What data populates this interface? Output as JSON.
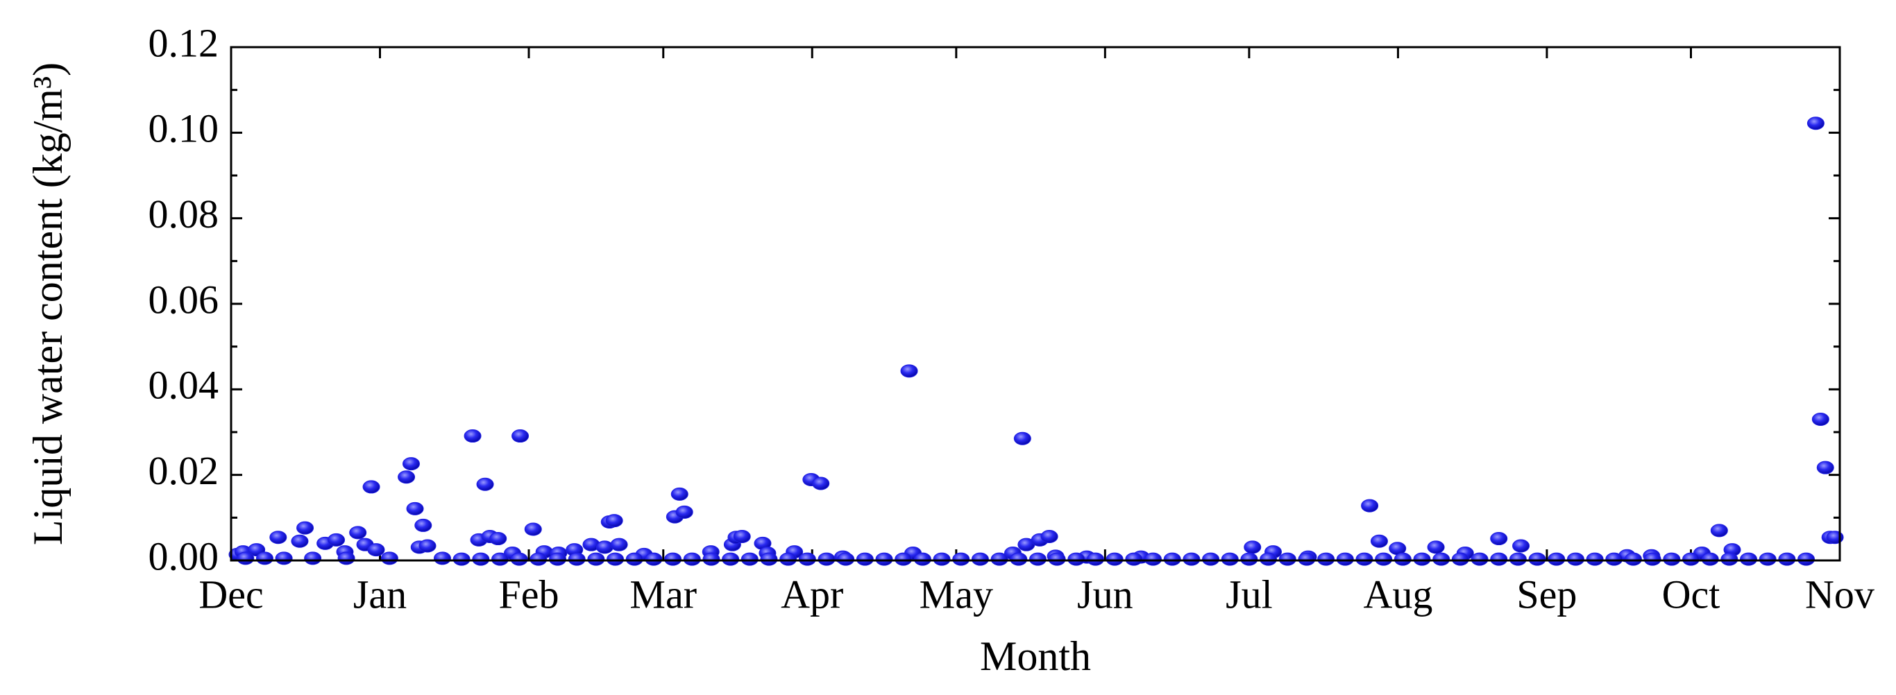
{
  "chart_data": {
    "type": "scatter",
    "x_label": "Month",
    "y_label": "Liquid water content (kg/m³)",
    "color": "#1f1fe0",
    "xlim": [
      0,
      335
    ],
    "xticks": [
      {
        "value": 0,
        "label": "Dec"
      },
      {
        "value": 31,
        "label": "Jan"
      },
      {
        "value": 62,
        "label": "Feb"
      },
      {
        "value": 90,
        "label": "Mar"
      },
      {
        "value": 121,
        "label": "Apr"
      },
      {
        "value": 151,
        "label": "May"
      },
      {
        "value": 182,
        "label": "Jun"
      },
      {
        "value": 212,
        "label": "Jul"
      },
      {
        "value": 243,
        "label": "Aug"
      },
      {
        "value": 274,
        "label": "Sep"
      },
      {
        "value": 304,
        "label": "Oct"
      },
      {
        "value": 335,
        "label": "Nov"
      }
    ],
    "ylim": [
      0,
      0.12
    ],
    "yticks": [
      {
        "value": 0,
        "label": "0.00"
      },
      {
        "value": 0.02,
        "label": "0.02"
      },
      {
        "value": 0.04,
        "label": "0.04"
      },
      {
        "value": 0.06,
        "label": "0.06"
      },
      {
        "value": 0.08,
        "label": "0.08"
      },
      {
        "value": 0.1,
        "label": "0.10"
      },
      {
        "value": 0.12,
        "label": "0.12"
      }
    ],
    "x": [
      1.3,
      2.5,
      5.3,
      9.8,
      14.3,
      15.4,
      19.6,
      21.9,
      23.7,
      26.4,
      27.9,
      29.2,
      30.2,
      36.5,
      37.5,
      38.3,
      40,
      39.2,
      40.9,
      50.3,
      51.6,
      52.9,
      53.9,
      55.6,
      58.6,
      60.2,
      62.9,
      65.2,
      68.2,
      71.5,
      75,
      77.8,
      78.8,
      79.8,
      80.8,
      86,
      92.4,
      93.4,
      94.4,
      99.9,
      104.4,
      105.2,
      106.4,
      110.7,
      111.7,
      117.3,
      120.8,
      122.8,
      127.4,
      141.2,
      142,
      162.8,
      164.8,
      165.6,
      168.4,
      170.4,
      171.7,
      178.2,
      189.5,
      212.7,
      217,
      224.3,
      237.1,
      239.1,
      242.9,
      250.9,
      257,
      264,
      268.6,
      290.7,
      295.8,
      306.3,
      309.9,
      312.6,
      330,
      331,
      332,
      333,
      334,
      3,
      7,
      11,
      17,
      24,
      33,
      44,
      48,
      52,
      56,
      60,
      64,
      68,
      72,
      76,
      80,
      84,
      88,
      92,
      96,
      100,
      104,
      108,
      112,
      116,
      120,
      124,
      128,
      132,
      136,
      140,
      144,
      148,
      152,
      156,
      160,
      164,
      168,
      172,
      176,
      180,
      184,
      188,
      192,
      196,
      200,
      204,
      208,
      212,
      216,
      220,
      224,
      228,
      232,
      236,
      240,
      244,
      248,
      252,
      256,
      260,
      264,
      268,
      272,
      276,
      280,
      284,
      288,
      292,
      296,
      300,
      304,
      308,
      312,
      316,
      320,
      324,
      328
    ],
    "values": [
      0.0014,
      0.002,
      0.0025,
      0.0054,
      0.0045,
      0.0076,
      0.004,
      0.0048,
      0.002,
      0.0065,
      0.0037,
      0.0172,
      0.0025,
      0.0195,
      0.0226,
      0.0121,
      0.0082,
      0.0031,
      0.0034,
      0.0291,
      0.0048,
      0.0178,
      0.0056,
      0.0051,
      0.0017,
      0.0291,
      0.0073,
      0.002,
      0.0017,
      0.0025,
      0.0037,
      0.0031,
      0.009,
      0.0093,
      0.0037,
      0.0014,
      0.0102,
      0.0155,
      0.0113,
      0.002,
      0.0037,
      0.0054,
      0.0056,
      0.004,
      0.0017,
      0.002,
      0.0189,
      0.018,
      0.0008,
      0.0443,
      0.0017,
      0.0017,
      0.0285,
      0.0037,
      0.0048,
      0.0056,
      0.001,
      0.0008,
      0.0008,
      0.0031,
      0.002,
      0.0008,
      0.0128,
      0.0045,
      0.0028,
      0.0031,
      0.0017,
      0.0051,
      0.0034,
      0.0011,
      0.0011,
      0.0017,
      0.007,
      0.0025,
      0.1022,
      0.033,
      0.0217,
      0.0054,
      0.0054,
      0.0005,
      0.0005,
      0.0005,
      0.0005,
      0.0005,
      0.0005,
      0.0005,
      0.0003,
      0.0003,
      0.0003,
      0.0003,
      0.0003,
      0.0003,
      0.0003,
      0.0003,
      0.0003,
      0.0003,
      0.0003,
      0.0003,
      0.0003,
      0.0003,
      0.0003,
      0.0003,
      0.0003,
      0.0003,
      0.0003,
      0.0003,
      0.0003,
      0.0003,
      0.0003,
      0.0003,
      0.0003,
      0.0003,
      0.0003,
      0.0003,
      0.0003,
      0.0003,
      0.0003,
      0.0003,
      0.0003,
      0.0003,
      0.0003,
      0.0003,
      0.0003,
      0.0003,
      0.0003,
      0.0003,
      0.0003,
      0.0003,
      0.0003,
      0.0003,
      0.0003,
      0.0003,
      0.0003,
      0.0003,
      0.0003,
      0.0003,
      0.0003,
      0.0003,
      0.0003,
      0.0003,
      0.0003,
      0.0003,
      0.0003,
      0.0003,
      0.0003,
      0.0003,
      0.0003,
      0.0003,
      0.0003,
      0.0003,
      0.0003,
      0.0003,
      0.0003,
      0.0003,
      0.0003,
      0.0003,
      0.0003
    ]
  }
}
